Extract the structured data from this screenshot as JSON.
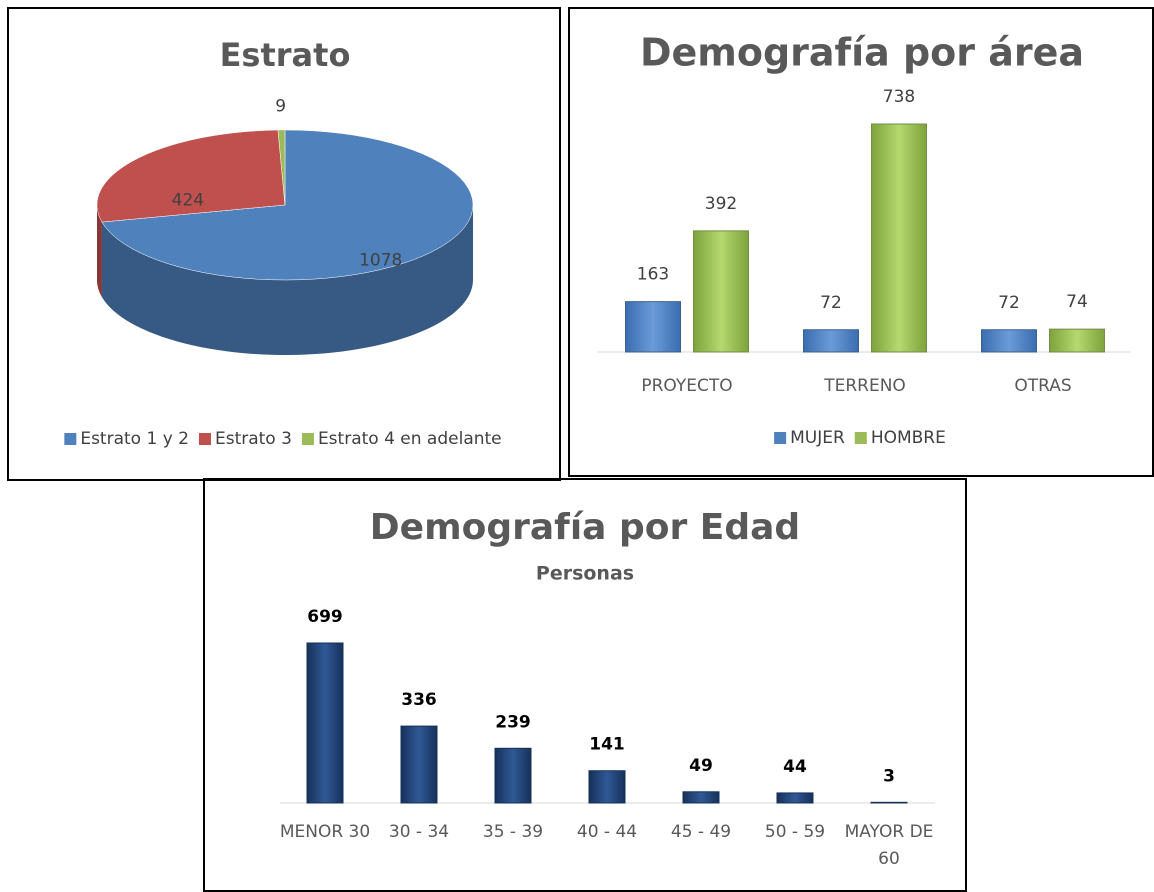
{
  "chart_data": [
    {
      "type": "pie",
      "title": "Estrato",
      "categories": [
        "Estrato 1 y 2",
        "Estrato 3",
        "Estrato 4 en adelante"
      ],
      "values": [
        1078,
        424,
        9
      ],
      "colors": [
        "#4f81bd",
        "#c0504d",
        "#9bbb59"
      ]
    },
    {
      "type": "bar",
      "title": "Demografía por área",
      "categories": [
        "PROYECTO",
        "TERRENO",
        "OTRAS"
      ],
      "series": [
        {
          "name": "MUJER",
          "color": "#4f81bd",
          "values": [
            163,
            72,
            72
          ]
        },
        {
          "name": "HOMBRE",
          "color": "#9bbb59",
          "values": [
            392,
            738,
            74
          ]
        }
      ]
    },
    {
      "type": "bar",
      "title": "Demografía por Edad",
      "subtitle": "Personas",
      "categories": [
        "MENOR 30",
        "30 - 34",
        "35 - 39",
        "40 - 44",
        "45 - 49",
        "50 - 59",
        "MAYOR DE 60"
      ],
      "values": [
        699,
        336,
        239,
        141,
        49,
        44,
        3
      ],
      "color": "#1f3f73"
    }
  ]
}
